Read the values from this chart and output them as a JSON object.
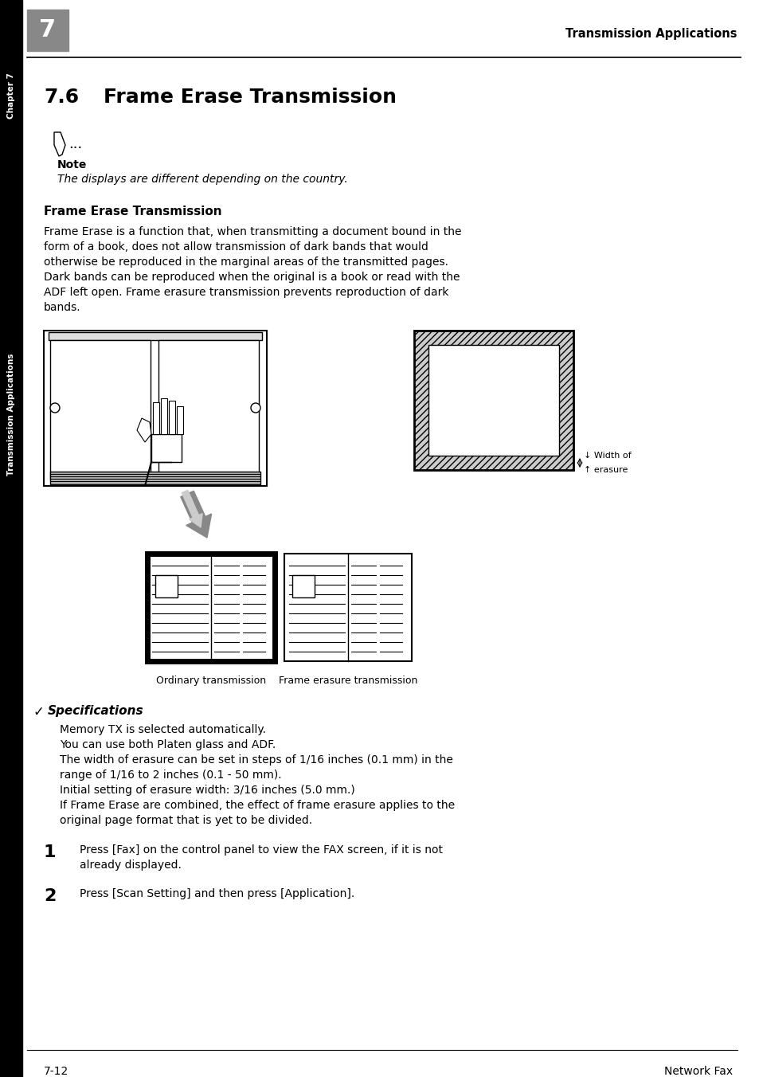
{
  "page_bg": "#ffffff",
  "sidebar_bg": "#000000",
  "chapter_box_bg": "#888888",
  "chapter_number": "7",
  "header_text": "Transmission Applications",
  "section_number": "7.6",
  "section_title": "Frame Erase Transmission",
  "note_label": "Note",
  "note_text": "The displays are different depending on the country.",
  "subsection_title": "Frame Erase Transmission",
  "body_lines": [
    "Frame Erase is a function that, when transmitting a document bound in the",
    "form of a book, does not allow transmission of dark bands that would",
    "otherwise be reproduced in the marginal areas of the transmitted pages.",
    "Dark bands can be reproduced when the original is a book or read with the",
    "ADF left open. Frame erasure transmission prevents reproduction of dark",
    "bands."
  ],
  "width_label1": "↓ Width of",
  "width_label2": "↑ erasure",
  "ordinary_label": "Ordinary transmission",
  "frame_erasure_label": "Frame erasure transmission",
  "spec_title": "Specifications",
  "spec_lines": [
    "Memory TX is selected automatically.",
    "You can use both Platen glass and ADF.",
    "The width of erasure can be set in steps of 1/16 inches (0.1 mm) in the",
    "range of 1/16 to 2 inches (0.1 - 50 mm).",
    "Initial setting of erasure width: 3/16 inches (5.0 mm.)",
    "If Frame Erase are combined, the effect of frame erasure applies to the",
    "original page format that is yet to be divided."
  ],
  "step1_num": "1",
  "step1_lines": [
    "Press [Fax] on the control panel to view the FAX screen, if it is not",
    "already displayed."
  ],
  "step2_num": "2",
  "step2_text": "Press [Scan Setting] and then press [Application].",
  "footer_left": "7-12",
  "footer_right": "Network Fax",
  "sidebar_text": "Transmission Applications",
  "chapter_sidebar_text": "Chapter 7"
}
